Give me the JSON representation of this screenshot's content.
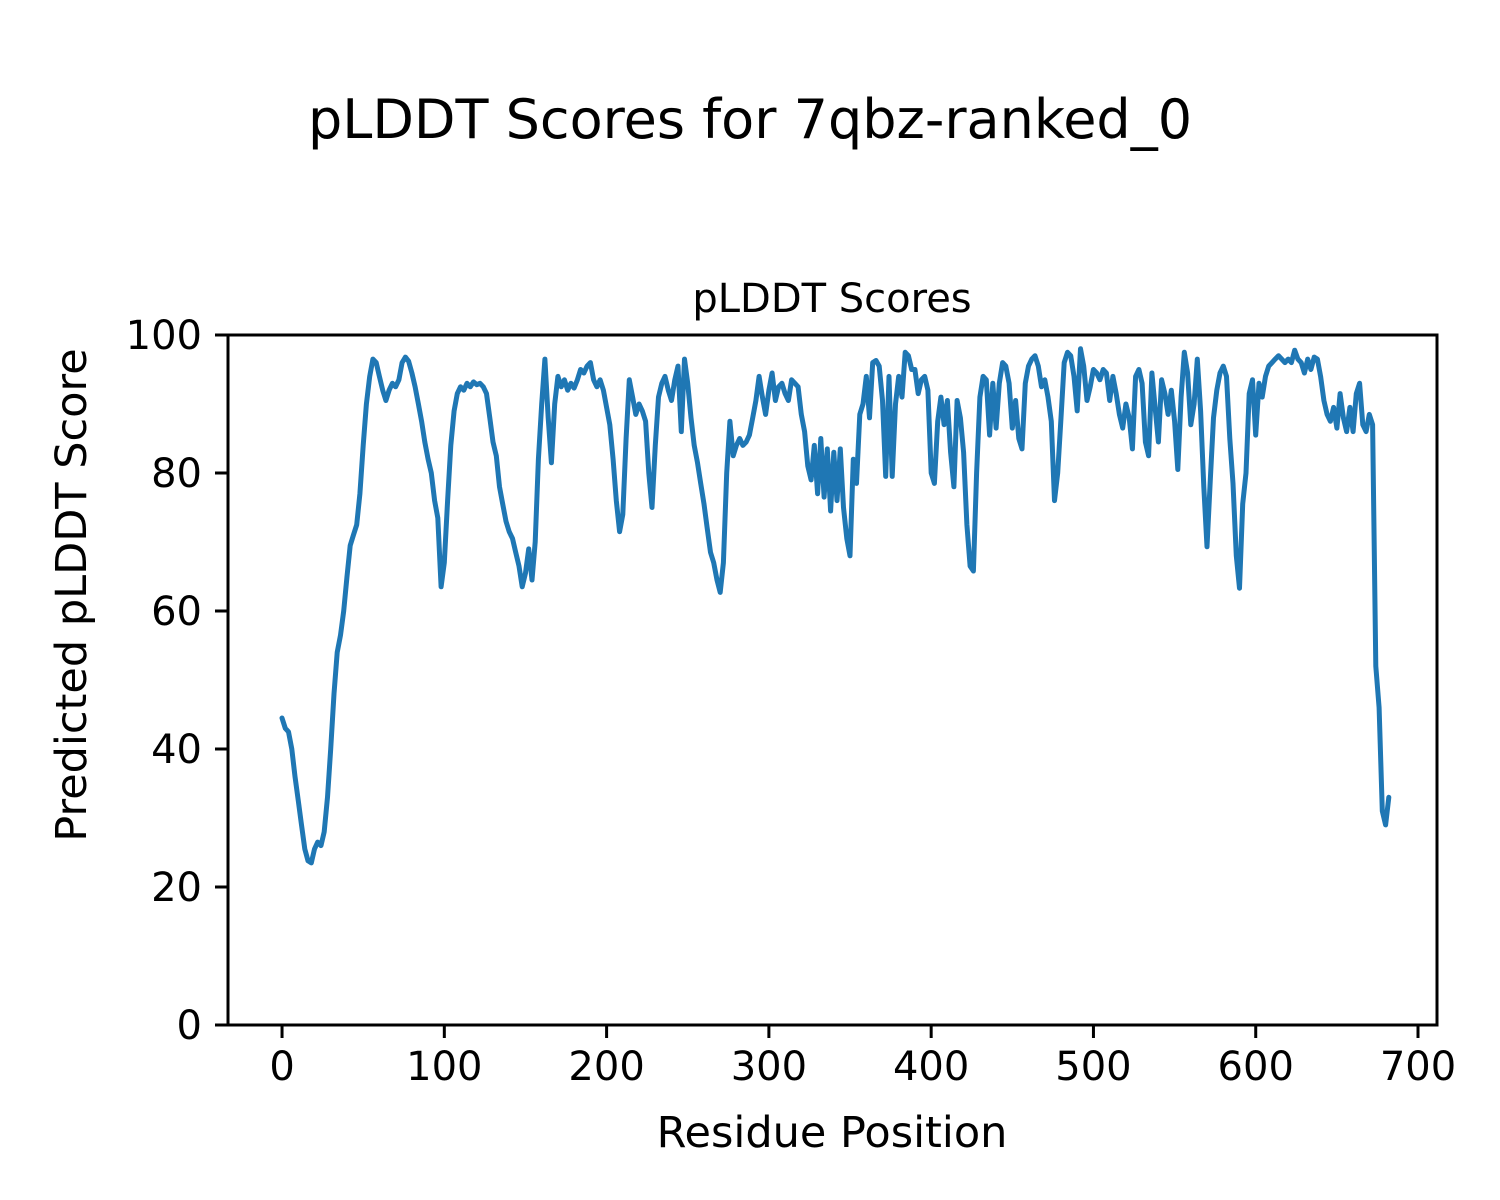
{
  "figure": {
    "suptitle": "pLDDT Scores for 7qbz-ranked_0",
    "axes_title": "pLDDT Scores",
    "xlabel": "Residue Position",
    "ylabel": "Predicted pLDDT Score"
  },
  "chart_data": {
    "type": "line",
    "title": "pLDDT Scores",
    "suptitle": "pLDDT Scores for 7qbz-ranked_0",
    "xlabel": "Residue Position",
    "ylabel": "Predicted pLDDT Score",
    "line_color": "#1f77b4",
    "background_color": "#ffffff",
    "grid": false,
    "legend": "none",
    "xlim": [
      -33.3,
      711.7
    ],
    "ylim": [
      0,
      100
    ],
    "xticks": [
      0,
      100,
      200,
      300,
      400,
      500,
      600,
      700
    ],
    "yticks": [
      0,
      20,
      40,
      60,
      80,
      100
    ],
    "x_start": 0,
    "x_step": 2,
    "x_end": 682,
    "values": [
      44.5,
      43,
      42.5,
      40,
      36,
      32.5,
      29,
      25.5,
      23.8,
      23.5,
      25.5,
      26.5,
      26,
      28,
      33,
      40,
      48,
      54,
      56.5,
      60,
      65,
      69.5,
      71,
      72.5,
      77,
      84,
      90,
      94,
      96.5,
      96,
      94,
      92,
      90.5,
      92,
      93,
      92.5,
      93.5,
      96,
      96.8,
      96.2,
      94.5,
      92.5,
      90,
      87.5,
      84.5,
      82,
      80,
      76,
      73.5,
      63.5,
      67,
      76,
      84,
      89,
      91.5,
      92.5,
      92,
      93,
      92.5,
      93.2,
      92.8,
      93,
      92.5,
      91.5,
      88,
      84.5,
      82.5,
      78,
      75.5,
      73,
      71.5,
      70.5,
      68.5,
      66.5,
      63.5,
      65.5,
      69,
      64.5,
      70,
      82,
      90,
      96.5,
      88,
      81.5,
      90,
      94,
      92.5,
      93.5,
      92,
      93,
      92.3,
      93.5,
      95,
      94.5,
      95.5,
      96,
      93.5,
      92.5,
      93.5,
      92,
      89.5,
      87,
      82,
      76,
      71.5,
      74,
      85,
      93.5,
      91,
      88.5,
      90,
      89,
      87.5,
      80,
      75,
      84,
      91,
      93,
      94,
      92,
      90.5,
      93.5,
      95.5,
      86,
      96.5,
      93,
      88,
      84,
      81.5,
      78.5,
      75.5,
      72,
      68.5,
      67,
      64.5,
      62.7,
      67,
      80,
      87.5,
      82.5,
      84,
      85,
      84,
      84.5,
      85.5,
      88,
      90.5,
      94,
      91,
      88.5,
      92,
      94.5,
      90.5,
      92.5,
      93,
      91.5,
      90.5,
      93.5,
      93,
      92.5,
      88.5,
      86,
      81,
      79,
      84,
      77,
      85,
      76.5,
      83.5,
      74.5,
      83,
      76,
      83.5,
      75,
      70.5,
      68,
      82,
      78.5,
      88.5,
      90,
      94,
      88,
      96,
      96.3,
      95.5,
      90.5,
      79.5,
      94,
      79.5,
      90,
      94,
      91,
      97.5,
      97,
      95,
      95,
      91.5,
      93.5,
      94,
      92,
      80,
      78.5,
      87.5,
      91,
      87,
      90.5,
      83,
      78,
      90.5,
      88,
      83,
      72.5,
      66.5,
      65.8,
      80,
      91,
      94,
      93.5,
      85.5,
      93,
      86.5,
      93,
      96,
      95.5,
      93,
      86.5,
      90.5,
      85,
      83.5,
      93,
      95.5,
      96.5,
      97,
      95.5,
      92.5,
      93.5,
      91,
      87.5,
      76,
      80,
      88,
      96,
      97.5,
      97,
      94,
      89,
      98,
      95.5,
      90.5,
      92.5,
      95,
      94.5,
      93.5,
      95,
      94.5,
      90.5,
      94,
      91.5,
      88.5,
      86.5,
      90,
      88,
      83.5,
      94,
      95,
      93,
      84.5,
      82.5,
      94.5,
      89.5,
      84.5,
      93.5,
      91.5,
      88.5,
      92,
      87.5,
      80.5,
      91,
      97.5,
      94.5,
      87,
      90,
      96.5,
      89,
      78,
      69.3,
      79,
      88,
      92,
      94.5,
      95.5,
      94,
      85,
      78.5,
      68,
      63.3,
      75.5,
      80,
      91.5,
      93.5,
      85.5,
      93,
      91,
      94,
      95.5,
      96,
      96.5,
      97,
      96.5,
      96,
      96.5,
      96,
      97.8,
      96.5,
      96,
      94.5,
      96.5,
      95,
      96.8,
      96.5,
      94,
      90.5,
      88.5,
      87.5,
      89.5,
      86.5,
      91.5,
      88,
      86,
      89.5,
      86,
      91.5,
      93,
      87,
      86,
      88.5,
      87,
      52,
      46,
      31,
      29,
      33
    ]
  }
}
